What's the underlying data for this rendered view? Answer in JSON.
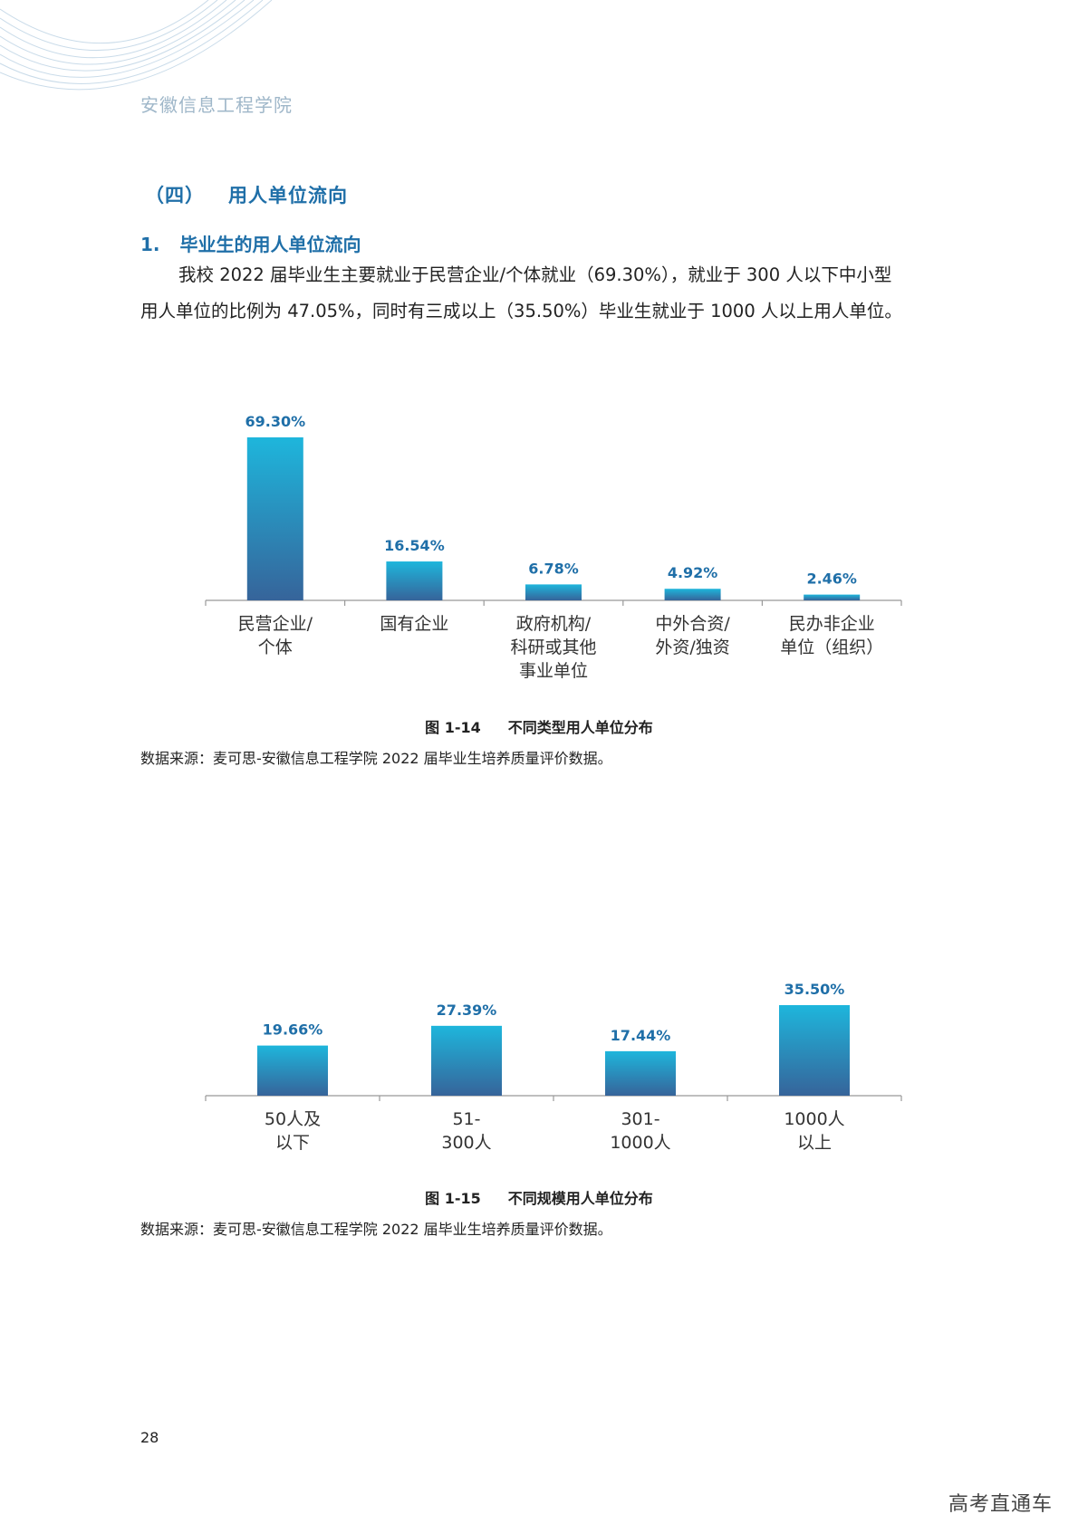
{
  "header": {
    "school": "安徽信息工程学院"
  },
  "section": {
    "number": "（四）",
    "title": "用人单位流向"
  },
  "subsection": {
    "number": "1.",
    "title": "毕业生的用人单位流向"
  },
  "paragraph": {
    "line1": "我校 2022 届毕业生主要就业于民营企业/个体就业（69.30%），就业于 300 人以下中小型",
    "line2": "用人单位的比例为 47.05%，同时有三成以上（35.50%）毕业生就业于 1000 人以上用人单位。"
  },
  "figure14": {
    "number": "图 1-14",
    "title": "不同类型用人单位分布",
    "source": "数据来源：麦可思-安徽信息工程学院 2022 届毕业生培养质量评价数据。"
  },
  "figure15": {
    "number": "图 1-15",
    "title": "不同规模用人单位分布",
    "source": "数据来源：麦可思-安徽信息工程学院 2022 届毕业生培养质量评价数据。"
  },
  "chart_data": [
    {
      "type": "bar",
      "categories": [
        [
          "民营企业/",
          "个体"
        ],
        [
          "国有企业"
        ],
        [
          "政府机构/",
          "科研或其他",
          "事业单位"
        ],
        [
          "中外合资/",
          "外资/独资"
        ],
        [
          "民办非企业",
          "单位（组织）"
        ]
      ],
      "values": [
        69.3,
        16.54,
        6.78,
        4.92,
        2.46
      ],
      "data_labels": [
        "69.30%",
        "16.54%",
        "6.78%",
        "4.92%",
        "2.46%"
      ],
      "ylim": [
        0,
        69.3
      ],
      "grid": false,
      "colors": {
        "bar_top": "#1eb6dc",
        "bar_bottom": "#36649a",
        "label": "#1f6fa8",
        "axis": "#999999"
      }
    },
    {
      "type": "bar",
      "categories": [
        [
          "50人及",
          "以下"
        ],
        [
          "51-",
          "300人"
        ],
        [
          "301-",
          "1000人"
        ],
        [
          "1000人",
          "以上"
        ]
      ],
      "values": [
        19.66,
        27.39,
        17.44,
        35.5
      ],
      "data_labels": [
        "19.66%",
        "27.39%",
        "17.44%",
        "35.50%"
      ],
      "ylim": [
        0,
        35.5
      ],
      "grid": false,
      "colors": {
        "bar_top": "#1eb6dc",
        "bar_bottom": "#36649a",
        "label": "#1f6fa8",
        "axis": "#999999"
      }
    }
  ],
  "footer": {
    "page_number": "28",
    "watermark": "高考直通车"
  }
}
